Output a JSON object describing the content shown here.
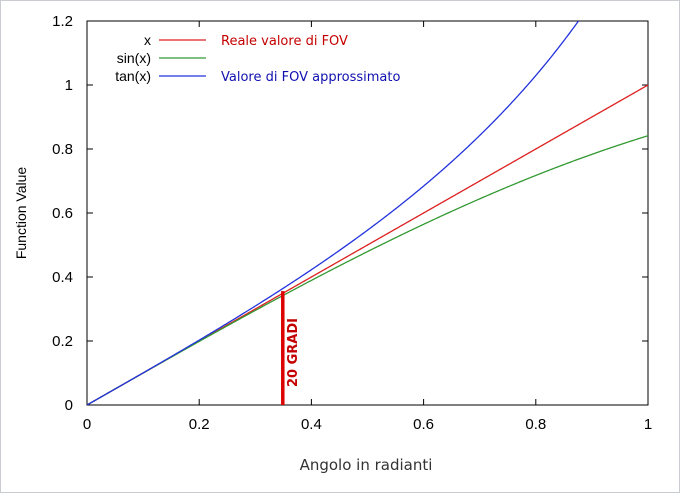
{
  "chart_data": {
    "type": "line",
    "xlabel": "Angolo in radianti",
    "ylabel": "Function Value",
    "xlim": [
      0,
      1
    ],
    "ylim": [
      0,
      1.2
    ],
    "xticks": [
      "0",
      "0.2",
      "0.4",
      "0.6",
      "0.8",
      "1"
    ],
    "yticks": [
      "0",
      "0.2",
      "0.4",
      "0.6",
      "0.8",
      "1",
      "1.2"
    ],
    "grid": false,
    "legend_position": "top-left",
    "series": [
      {
        "name": "x",
        "color": "#dd2222",
        "function": "x",
        "x": [
          0,
          0.1,
          0.2,
          0.3,
          0.4,
          0.5,
          0.6,
          0.7,
          0.8,
          0.9,
          1.0
        ],
        "y": [
          0,
          0.1,
          0.2,
          0.3,
          0.4,
          0.5,
          0.6,
          0.7,
          0.8,
          0.9,
          1.0
        ]
      },
      {
        "name": "sin(x)",
        "color": "#339933",
        "function": "sin",
        "x": [
          0,
          0.1,
          0.2,
          0.3,
          0.4,
          0.5,
          0.6,
          0.7,
          0.8,
          0.9,
          1.0
        ],
        "y": [
          0,
          0.0998,
          0.1987,
          0.2955,
          0.3894,
          0.4794,
          0.5646,
          0.6442,
          0.7174,
          0.7833,
          0.8415
        ]
      },
      {
        "name": "tan(x)",
        "color": "#2233dd",
        "function": "tan",
        "x": [
          0,
          0.1,
          0.2,
          0.3,
          0.4,
          0.5,
          0.6,
          0.7,
          0.8,
          0.876
        ],
        "y": [
          0,
          0.1003,
          0.2027,
          0.3093,
          0.4228,
          0.5463,
          0.6841,
          0.8423,
          1.0296,
          1.2
        ]
      }
    ],
    "annotations": [
      {
        "text": "Reale valore di FOV",
        "color": "#c40000"
      },
      {
        "text": "Valore di FOV approssimato",
        "color": "#1010b0"
      },
      {
        "text": "20 GRADI",
        "color": "#c40000",
        "marker_x": 0.349,
        "marker_y": 0.356
      }
    ]
  }
}
